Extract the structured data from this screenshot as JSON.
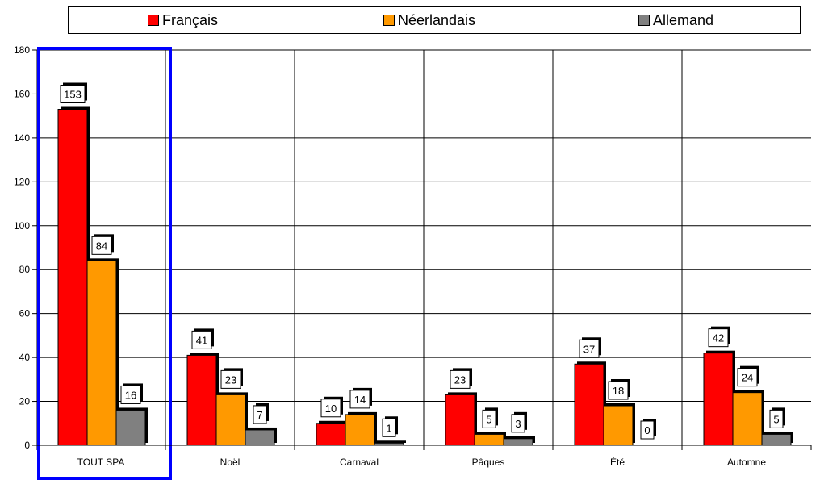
{
  "chart_data": {
    "type": "bar",
    "categories": [
      "TOUT SPA",
      "Noël",
      "Carnaval",
      "Pâques",
      "Été",
      "Automne"
    ],
    "series": [
      {
        "name": "Français",
        "color": "#ff0000",
        "values": [
          153,
          41,
          10,
          23,
          37,
          42
        ]
      },
      {
        "name": "Néerlandais",
        "color": "#ff9900",
        "values": [
          84,
          23,
          14,
          5,
          18,
          24
        ]
      },
      {
        "name": "Allemand",
        "color": "#808080",
        "values": [
          16,
          7,
          1,
          3,
          0,
          5
        ]
      }
    ],
    "ylim": [
      0,
      180
    ],
    "yticks": [
      0,
      20,
      40,
      60,
      80,
      100,
      120,
      140,
      160,
      180
    ],
    "grid": true,
    "legend_position": "top",
    "highlighted_category": "TOUT SPA",
    "highlight_color": "#0000ff"
  }
}
